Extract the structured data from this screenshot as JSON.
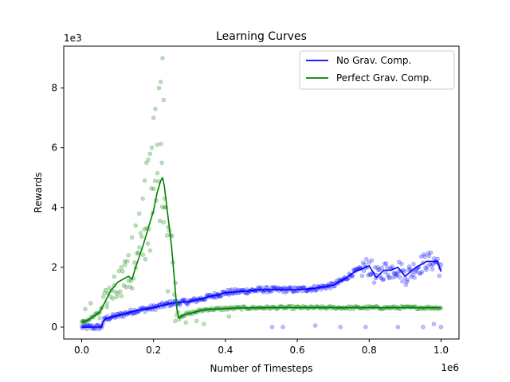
{
  "chart_data": {
    "type": "line",
    "title": "Learning Curves",
    "xlabel": "Number of Timesteps",
    "ylabel": "Rewards",
    "x_offset_label": "1e6",
    "y_offset_label": "1e3",
    "x_scale": 1000000,
    "y_scale": 1000,
    "xlim": [
      -50000,
      1050000
    ],
    "ylim": [
      -400,
      9400
    ],
    "xticks": [
      0,
      200000,
      400000,
      600000,
      800000,
      1000000
    ],
    "xtick_labels": [
      "0.0",
      "0.2",
      "0.4",
      "0.6",
      "0.8",
      "1.0"
    ],
    "yticks": [
      0,
      2000,
      4000,
      6000,
      8000
    ],
    "ytick_labels": [
      "0",
      "2",
      "4",
      "6",
      "8"
    ],
    "grid": false,
    "legend_position": "upper right",
    "series": [
      {
        "name": "No Grav. Comp.",
        "color": "#0000ff",
        "marker": "o",
        "line": {
          "x": [
            0,
            30000,
            55000,
            60000,
            70000,
            100000,
            150000,
            200000,
            250000,
            300000,
            350000,
            400000,
            450000,
            500000,
            550000,
            600000,
            650000,
            700000,
            730000,
            760000,
            800000,
            820000,
            840000,
            860000,
            880000,
            900000,
            930000,
            960000,
            980000,
            990000,
            1000000
          ],
          "y": [
            0,
            0,
            0,
            200,
            300,
            380,
            550,
            650,
            800,
            850,
            1000,
            1150,
            1200,
            1250,
            1250,
            1250,
            1300,
            1400,
            1600,
            1850,
            2050,
            1650,
            1900,
            1900,
            2000,
            1700,
            2000,
            2200,
            2200,
            2200,
            1850
          ]
        },
        "outliers": {
          "x": [
            530000,
            560000,
            650000,
            720000,
            790000,
            880000,
            950000,
            980000,
            1000000
          ],
          "y": [
            0,
            0,
            50,
            0,
            0,
            0,
            0,
            100,
            0
          ]
        }
      },
      {
        "name": "Perfect Grav. Comp.",
        "color": "#008000",
        "marker": "o",
        "line": {
          "x": [
            0,
            20000,
            50000,
            80000,
            100000,
            130000,
            140000,
            150000,
            170000,
            200000,
            210000,
            220000,
            225000,
            230000,
            250000,
            265000,
            270000,
            280000,
            300000,
            330000,
            350000,
            380000,
            400000,
            450000,
            500000,
            600000,
            700000,
            800000,
            900000,
            1000000
          ],
          "y": [
            150,
            250,
            500,
            1200,
            1500,
            1700,
            1600,
            2000,
            2700,
            3900,
            4500,
            4900,
            5000,
            4700,
            2700,
            600,
            300,
            400,
            450,
            550,
            600,
            600,
            620,
            640,
            650,
            650,
            650,
            650,
            650,
            650
          ]
        },
        "outliers": {
          "x": [
            225000,
            220000,
            215000,
            228000,
            205000,
            200000,
            195000,
            210000,
            190000,
            185000,
            180000,
            175000,
            170000,
            230000,
            223000,
            160000,
            150000,
            140000,
            130000,
            120000,
            110000,
            90000,
            70000,
            50000,
            25000,
            10000,
            5000,
            240000,
            260000,
            290000,
            320000,
            340000,
            380000,
            410000
          ],
          "y": [
            9000,
            8200,
            8000,
            7600,
            7300,
            7000,
            6000,
            6100,
            5800,
            5600,
            5500,
            4900,
            4300,
            4000,
            5500,
            3800,
            3400,
            3000,
            2400,
            2200,
            2000,
            1400,
            800,
            300,
            800,
            600,
            200,
            1200,
            200,
            150,
            200,
            100,
            1100,
            350
          ]
        }
      }
    ]
  }
}
